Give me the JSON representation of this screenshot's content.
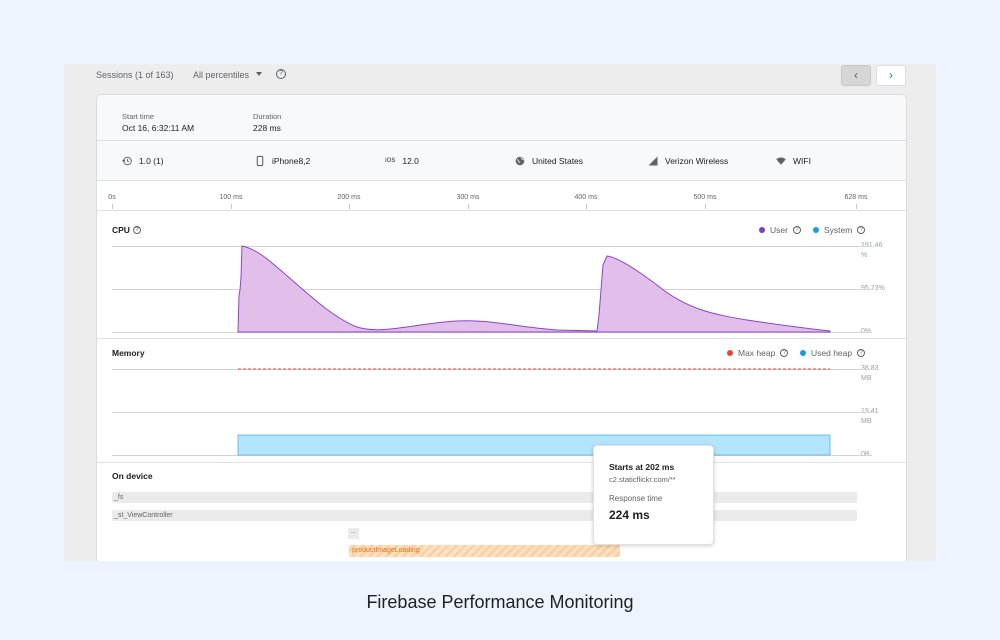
{
  "topbar": {
    "sessions": "Sessions (1 of 163)",
    "percentiles": "All percentiles",
    "help_icon": "help-icon",
    "prev_icon": "chevron-left-icon",
    "next_icon": "chevron-right-icon",
    "prev_glyph": "‹",
    "next_glyph": "›"
  },
  "meta": {
    "start_label": "Start time",
    "start_value": "Oct 16, 6:32:11 AM",
    "duration_label": "Duration",
    "duration_value": "228 ms"
  },
  "device": {
    "app_version": "1.0 (1)",
    "model": "iPhone8,2",
    "os_label": "iOS",
    "os_version": "12.0",
    "country": "United States",
    "carrier": "Verizon Wireless",
    "network": "WIFI"
  },
  "timeline": {
    "ticks": [
      "0s",
      "100 ms",
      "200 ms",
      "300 ms",
      "400 ms",
      "500 ms",
      "628 ms"
    ]
  },
  "cpu": {
    "title": "CPU",
    "legend_user": "User",
    "legend_system": "System",
    "axis_top": "191.46",
    "axis_top_unit": "%",
    "axis_mid": "95.73%",
    "axis_bottom": "0%"
  },
  "memory": {
    "title": "Memory",
    "legend_max": "Max heap",
    "legend_used": "Used heap",
    "axis_top": "38.83",
    "axis_top_unit": "MB",
    "axis_mid": "19.41",
    "axis_mid_unit": "MB",
    "axis_bottom": "0B"
  },
  "on_device": {
    "title": "On device",
    "trace1": "_fs",
    "trace2": "_st_ViewController",
    "collapsed": "...",
    "loading": "productImageLoading"
  },
  "tooltip": {
    "starts": "Starts at 202 ms",
    "url": "c2.staticflickr.com/**",
    "resp_label": "Response time",
    "resp_value": "224 ms"
  },
  "colors": {
    "user": "#7b3fc4",
    "system": "#1a9be8",
    "max_heap": "#ea4335",
    "used_heap": "#4fc3f7",
    "cpu_fill": "#e1bfea",
    "memory_fill": "#b3e5fc",
    "loading": "#e8711a"
  },
  "caption": "Firebase Performance Monitoring"
}
